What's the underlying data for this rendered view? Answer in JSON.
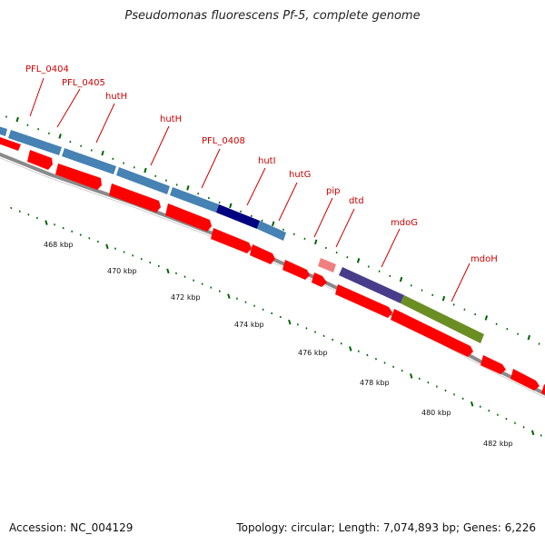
{
  "title": "Pseudomonas fluorescens Pf-5, complete genome",
  "footer": {
    "accession": "Accession: NC_004129",
    "summary": "Topology: circular; Length: 7,074,893 bp; Genes: 6,226"
  },
  "colors": {
    "backbone": "#8a8a8a",
    "cds_forward": "#ff0000",
    "gene_blue": "#4682b4",
    "gene_navy": "#000080",
    "gene_pink": "#f08080",
    "gene_slate": "#483d8b",
    "gene_olive": "#6b8e23",
    "tick_green": "#006400",
    "label_red": "#cc0000"
  },
  "gene_labels": [
    {
      "name": "PFL_0404"
    },
    {
      "name": "PFL_0405"
    },
    {
      "name": "hutH"
    },
    {
      "name": "hutH"
    },
    {
      "name": "PFL_0408"
    },
    {
      "name": "hutI"
    },
    {
      "name": "hutG"
    },
    {
      "name": "pip"
    },
    {
      "name": "dtd"
    },
    {
      "name": "mdoG"
    },
    {
      "name": "mdoH"
    }
  ],
  "ticks": [
    {
      "label": "468 kbp"
    },
    {
      "label": "470 kbp"
    },
    {
      "label": "472 kbp"
    },
    {
      "label": "474 kbp"
    },
    {
      "label": "476 kbp"
    },
    {
      "label": "478 kbp"
    },
    {
      "label": "480 kbp"
    },
    {
      "label": "482 kbp"
    }
  ]
}
